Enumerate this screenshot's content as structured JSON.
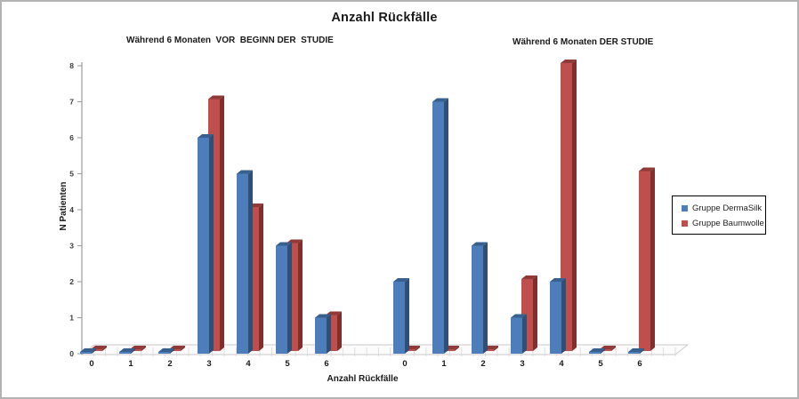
{
  "chart_data": {
    "type": "bar",
    "style": "3d-clustered-column",
    "title": "Anzahl Rückfälle",
    "xlabel": "Anzahl Rückfälle",
    "ylabel": "N Patienten",
    "ylim": [
      0,
      8
    ],
    "ytick_step": 1,
    "grid": false,
    "legend_position": "right",
    "groups": [
      {
        "title": "Während 6 Monaten  VOR  BEGINN DER  STUDIE",
        "categories": [
          "0",
          "1",
          "2",
          "3",
          "4",
          "5",
          "6"
        ]
      },
      {
        "title": "Während 6 Monaten DER STUDIE",
        "categories": [
          "0",
          "1",
          "2",
          "3",
          "4",
          "5",
          "6"
        ]
      }
    ],
    "series": [
      {
        "name": "Gruppe DermaSilk",
        "color": "#4D7EBB",
        "side_color": "#2F5074",
        "top_color": "#38608E",
        "values": [
          [
            0,
            0,
            0,
            6,
            5,
            3,
            1
          ],
          [
            2,
            7,
            3,
            1,
            2,
            0,
            0
          ]
        ]
      },
      {
        "name": "Gruppe Baumwolle",
        "color": "#BF4F4D",
        "side_color": "#7E302E",
        "top_color": "#8F3A36",
        "values": [
          [
            0,
            0,
            0,
            7,
            4,
            3,
            1
          ],
          [
            0,
            0,
            0,
            2,
            8,
            0,
            5
          ]
        ]
      }
    ]
  }
}
